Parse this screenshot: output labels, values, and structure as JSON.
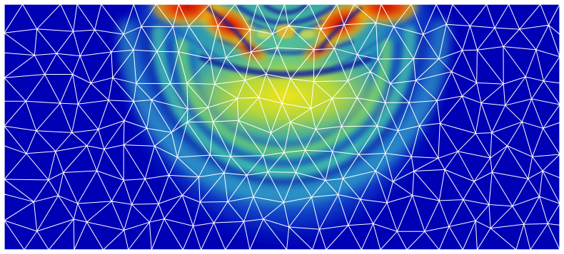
{
  "view": {
    "type": "finite-element-wave-field",
    "colormap": "jet",
    "background_color": "#0000b4",
    "mesh_line_color": "#ffffff",
    "border_color": "#ffffff",
    "mesh": "unstructured-triangular",
    "field_features": [
      "semicircular-wavefront-rings",
      "high-amplitude-source-region-top-center",
      "decay-toward-edges"
    ]
  }
}
